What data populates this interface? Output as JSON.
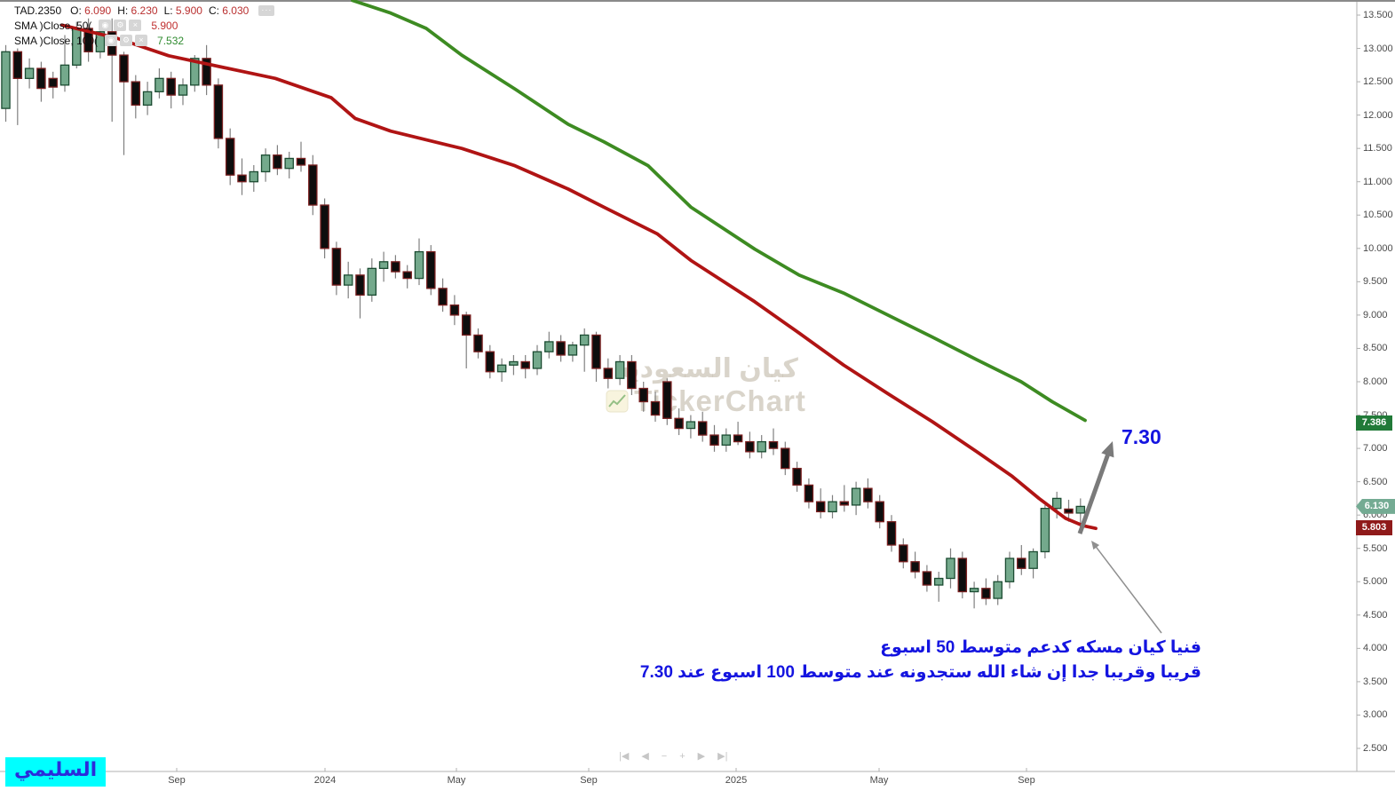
{
  "legend": {
    "symbol": "TAD.2350",
    "ohlc": [
      {
        "label": "O:",
        "value": "6.090"
      },
      {
        "label": "H:",
        "value": "6.230"
      },
      {
        "label": "L:",
        "value": "5.900"
      },
      {
        "label": "C:",
        "value": "6.030"
      }
    ],
    "more_button": "···",
    "indicators": [
      {
        "name": "SMA )Close, 50(",
        "value": "5.900",
        "value_color": "#c03030"
      },
      {
        "name": "SMA )Close, 100(",
        "value": "7.532",
        "value_color": "#2f8b2f"
      }
    ],
    "icon_buttons": {
      "eye": "◉",
      "gear": "⚙",
      "close": "×"
    }
  },
  "watermark": {
    "line1": "كيان السعودية",
    "line2": "TickerChart"
  },
  "badge": {
    "text": "السليمي"
  },
  "toolbar": {
    "buttons": [
      "|◀",
      "◀",
      "−",
      "+",
      "▶",
      "▶|"
    ]
  },
  "annotations": {
    "target_price": "7.30",
    "note_line1": "فنيا كيان مسكه كدعم متوسط 50 اسبوع",
    "note_line2": "قريبا وقريبا جدا إن شاء الله ستجدونه عند متوسط 100 اسبوع عند 7.30"
  },
  "price_tags": [
    {
      "value": "7.386",
      "price": 7.386,
      "bg": "#217a38",
      "style": "rect"
    },
    {
      "value": "6.130",
      "price": 6.13,
      "bg": "#74ab93",
      "style": "arrowed"
    },
    {
      "value": "5.803",
      "price": 5.803,
      "bg": "#8f1a1a",
      "style": "rect"
    }
  ],
  "chart_data": {
    "type": "candlestick",
    "title": "TAD.2350 weekly chart with SMA(50) and SMA(100)",
    "ylim": [
      2.157,
      13.727
    ],
    "y_ticks": [
      13.5,
      13.0,
      12.5,
      12.0,
      11.5,
      11.0,
      10.5,
      10.0,
      9.5,
      9.0,
      8.5,
      8.0,
      7.5,
      7.0,
      6.5,
      6.0,
      5.5,
      5.0,
      4.5,
      4.0,
      3.5,
      3.0,
      2.5
    ],
    "x_labels": [
      {
        "text": "Sep",
        "x": 199
      },
      {
        "text": "2024",
        "x": 366
      },
      {
        "text": "May",
        "x": 514
      },
      {
        "text": "Sep",
        "x": 663
      },
      {
        "text": "2025",
        "x": 829
      },
      {
        "text": "May",
        "x": 990
      },
      {
        "text": "Sep",
        "x": 1156
      }
    ],
    "colors": {
      "up_fill": "#74a98c",
      "up_border": "#1c4c32",
      "down_fill": "#0d0d0d",
      "down_border": "#7a2020",
      "wick": "#808080",
      "axis_line": "#b0b0b0"
    },
    "candles": [
      [
        12.1,
        13.05,
        11.9,
        12.95
      ],
      [
        12.95,
        13.0,
        11.85,
        12.55
      ],
      [
        12.55,
        12.85,
        12.4,
        12.7
      ],
      [
        12.7,
        12.8,
        12.2,
        12.4
      ],
      [
        12.55,
        12.65,
        12.25,
        12.42
      ],
      [
        12.45,
        13.2,
        12.35,
        12.75
      ],
      [
        12.75,
        13.4,
        12.7,
        13.3
      ],
      [
        13.3,
        13.45,
        12.8,
        12.95
      ],
      [
        12.95,
        13.4,
        12.85,
        13.25
      ],
      [
        13.25,
        13.45,
        11.9,
        12.9
      ],
      [
        12.9,
        12.95,
        11.4,
        12.5
      ],
      [
        12.5,
        12.6,
        11.95,
        12.15
      ],
      [
        12.15,
        12.5,
        12.0,
        12.35
      ],
      [
        12.35,
        12.7,
        12.25,
        12.55
      ],
      [
        12.55,
        12.65,
        12.1,
        12.3
      ],
      [
        12.3,
        12.55,
        12.15,
        12.45
      ],
      [
        12.45,
        12.9,
        12.35,
        12.85
      ],
      [
        12.85,
        13.05,
        12.3,
        12.45
      ],
      [
        12.45,
        12.55,
        11.5,
        11.65
      ],
      [
        11.65,
        11.8,
        10.95,
        11.1
      ],
      [
        11.1,
        11.35,
        10.8,
        11.0
      ],
      [
        11.0,
        11.25,
        10.85,
        11.15
      ],
      [
        11.15,
        11.5,
        11.0,
        11.4
      ],
      [
        11.4,
        11.55,
        11.1,
        11.2
      ],
      [
        11.2,
        11.45,
        11.05,
        11.35
      ],
      [
        11.35,
        11.6,
        11.15,
        11.25
      ],
      [
        11.25,
        11.4,
        10.5,
        10.65
      ],
      [
        10.65,
        10.75,
        9.85,
        10.0
      ],
      [
        10.0,
        10.1,
        9.3,
        9.45
      ],
      [
        9.45,
        9.8,
        9.25,
        9.6
      ],
      [
        9.6,
        9.7,
        8.95,
        9.3
      ],
      [
        9.3,
        9.85,
        9.2,
        9.7
      ],
      [
        9.7,
        9.95,
        9.5,
        9.8
      ],
      [
        9.8,
        9.9,
        9.55,
        9.65
      ],
      [
        9.65,
        9.75,
        9.4,
        9.55
      ],
      [
        9.55,
        10.15,
        9.45,
        9.95
      ],
      [
        9.95,
        10.05,
        9.3,
        9.4
      ],
      [
        9.4,
        9.55,
        9.05,
        9.15
      ],
      [
        9.15,
        9.3,
        8.85,
        9.0
      ],
      [
        9.0,
        9.05,
        8.2,
        8.7
      ],
      [
        8.7,
        8.8,
        8.35,
        8.45
      ],
      [
        8.45,
        8.55,
        8.05,
        8.15
      ],
      [
        8.15,
        8.35,
        8.0,
        8.25
      ],
      [
        8.25,
        8.4,
        8.1,
        8.3
      ],
      [
        8.3,
        8.4,
        8.05,
        8.2
      ],
      [
        8.2,
        8.55,
        8.1,
        8.45
      ],
      [
        8.45,
        8.75,
        8.35,
        8.6
      ],
      [
        8.6,
        8.7,
        8.3,
        8.4
      ],
      [
        8.4,
        8.6,
        8.3,
        8.55
      ],
      [
        8.55,
        8.8,
        8.15,
        8.7
      ],
      [
        8.7,
        8.75,
        8.0,
        8.2
      ],
      [
        8.2,
        8.35,
        7.9,
        8.05
      ],
      [
        8.05,
        8.4,
        7.95,
        8.3
      ],
      [
        8.3,
        8.4,
        7.8,
        7.9
      ],
      [
        7.9,
        8.0,
        7.55,
        7.7
      ],
      [
        7.7,
        7.85,
        7.4,
        7.5
      ],
      [
        8.0,
        8.05,
        7.35,
        7.45
      ],
      [
        7.45,
        7.6,
        7.2,
        7.3
      ],
      [
        7.3,
        7.5,
        7.15,
        7.4
      ],
      [
        7.4,
        7.55,
        7.1,
        7.2
      ],
      [
        7.2,
        7.35,
        6.95,
        7.05
      ],
      [
        7.05,
        7.3,
        6.95,
        7.2
      ],
      [
        7.2,
        7.4,
        7.05,
        7.1
      ],
      [
        7.1,
        7.25,
        6.85,
        6.95
      ],
      [
        6.95,
        7.2,
        6.85,
        7.1
      ],
      [
        7.1,
        7.3,
        6.9,
        7.0
      ],
      [
        7.0,
        7.1,
        6.6,
        6.7
      ],
      [
        6.7,
        6.8,
        6.35,
        6.45
      ],
      [
        6.45,
        6.55,
        6.1,
        6.2
      ],
      [
        6.2,
        6.4,
        5.95,
        6.05
      ],
      [
        6.05,
        6.3,
        5.95,
        6.2
      ],
      [
        6.2,
        6.45,
        6.05,
        6.15
      ],
      [
        6.15,
        6.5,
        6.0,
        6.4
      ],
      [
        6.4,
        6.55,
        6.1,
        6.2
      ],
      [
        6.2,
        6.3,
        5.8,
        5.9
      ],
      [
        5.9,
        6.0,
        5.45,
        5.55
      ],
      [
        5.55,
        5.65,
        5.2,
        5.3
      ],
      [
        5.3,
        5.45,
        5.05,
        5.15
      ],
      [
        5.15,
        5.25,
        4.85,
        4.95
      ],
      [
        4.95,
        5.15,
        4.7,
        5.05
      ],
      [
        5.05,
        5.5,
        4.9,
        5.35
      ],
      [
        5.35,
        5.45,
        4.75,
        4.85
      ],
      [
        4.85,
        5.0,
        4.6,
        4.9
      ],
      [
        4.9,
        5.05,
        4.65,
        4.75
      ],
      [
        4.75,
        5.1,
        4.65,
        5.0
      ],
      [
        5.0,
        5.45,
        4.9,
        5.35
      ],
      [
        5.35,
        5.55,
        5.1,
        5.2
      ],
      [
        5.2,
        5.5,
        5.05,
        5.45
      ],
      [
        5.45,
        6.15,
        5.35,
        6.1
      ],
      [
        6.1,
        6.35,
        5.95,
        6.25
      ],
      [
        6.09,
        6.23,
        5.9,
        6.03
      ],
      [
        6.03,
        6.25,
        5.78,
        6.13
      ]
    ],
    "sma50": {
      "name": "SMA 50",
      "color": "#b01414",
      "last_value": 5.803,
      "points": [
        [
          70,
          13.35
        ],
        [
          130,
          13.16
        ],
        [
          190,
          12.89
        ],
        [
          250,
          12.72
        ],
        [
          310,
          12.55
        ],
        [
          373,
          12.26
        ],
        [
          400,
          11.95
        ],
        [
          440,
          11.76
        ],
        [
          520,
          11.5
        ],
        [
          580,
          11.24
        ],
        [
          640,
          10.89
        ],
        [
          680,
          10.62
        ],
        [
          740,
          10.22
        ],
        [
          778,
          9.82
        ],
        [
          850,
          9.2
        ],
        [
          900,
          8.73
        ],
        [
          950,
          8.25
        ],
        [
          1000,
          7.82
        ],
        [
          1050,
          7.4
        ],
        [
          1100,
          6.95
        ],
        [
          1140,
          6.58
        ],
        [
          1170,
          6.25
        ],
        [
          1200,
          5.95
        ],
        [
          1220,
          5.84
        ],
        [
          1234,
          5.8
        ]
      ]
    },
    "sma100": {
      "name": "SMA 100",
      "color": "#3d8b22",
      "last_value": 7.386,
      "points": [
        [
          397,
          13.72
        ],
        [
          440,
          13.53
        ],
        [
          480,
          13.3
        ],
        [
          520,
          12.9
        ],
        [
          580,
          12.39
        ],
        [
          640,
          11.86
        ],
        [
          680,
          11.6
        ],
        [
          730,
          11.24
        ],
        [
          778,
          10.62
        ],
        [
          850,
          9.99
        ],
        [
          900,
          9.6
        ],
        [
          950,
          9.33
        ],
        [
          1000,
          9.0
        ],
        [
          1050,
          8.67
        ],
        [
          1100,
          8.33
        ],
        [
          1150,
          8.0
        ],
        [
          1185,
          7.7
        ],
        [
          1222,
          7.42
        ]
      ]
    },
    "arrows": [
      {
        "name": "big-arrow",
        "from": [
          1216,
          601
        ],
        "to": [
          1253,
          497
        ],
        "width": 5,
        "head": 16,
        "color": "#7a7a7a"
      },
      {
        "name": "thin-arrow",
        "from": [
          1308,
          713
        ],
        "to": [
          1229,
          609
        ],
        "width": 1.5,
        "head": 9,
        "color": "#8f8f8f"
      }
    ]
  }
}
